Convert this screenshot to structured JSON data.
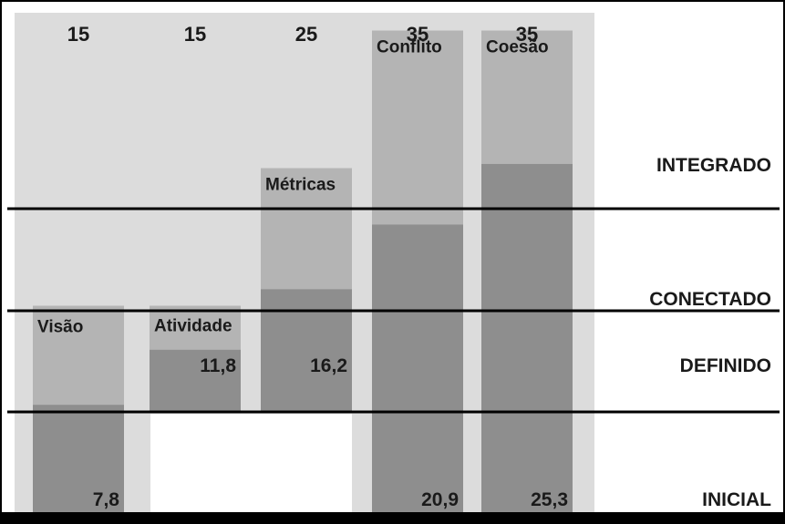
{
  "chart_data": {
    "type": "bar",
    "categories": [
      "Visão",
      "Atividade",
      "Métricas",
      "Conflito",
      "Coesão"
    ],
    "max_values": [
      15,
      15,
      25,
      35,
      35
    ],
    "values": [
      7.8,
      11.8,
      16.2,
      20.9,
      25.3
    ],
    "value_labels": [
      "7,8",
      "11,8",
      "16,2",
      "20,9",
      "25,3"
    ],
    "levels": [
      "INICIAL",
      "DEFINIDO",
      "CONECTADO",
      "INTEGRADO"
    ],
    "colors": {
      "background_band": "#dcdcdc",
      "max_bar": "#b4b4b4",
      "value_bar": "#8e8e8e",
      "line": "#000000",
      "text": "#1a1a1a"
    }
  }
}
